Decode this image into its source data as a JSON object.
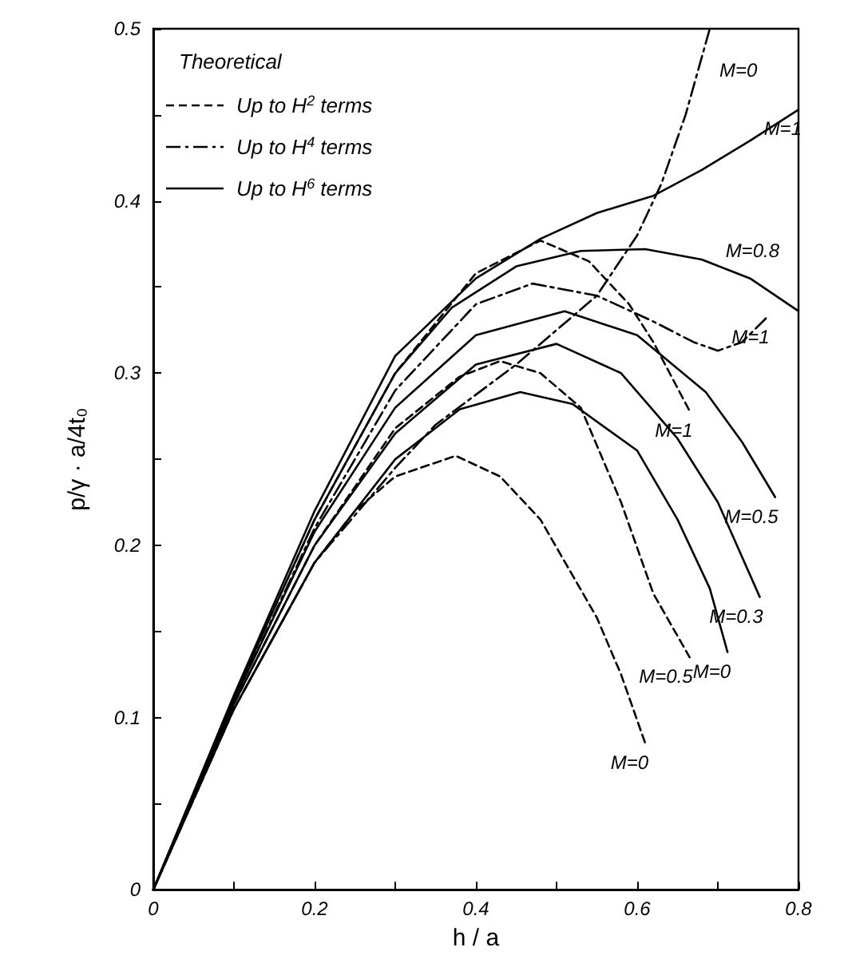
{
  "chart_data": {
    "type": "line",
    "xlabel": "h / a",
    "ylabel": "p/γ · a/4t₀",
    "legend_title": "Theoretical",
    "grid": false,
    "xlim": [
      0,
      0.8
    ],
    "xticks": [
      0,
      {
        "value": 0.1,
        "label": null
      },
      0.2,
      {
        "value": 0.3,
        "label": null
      },
      0.4,
      {
        "value": 0.5,
        "label": null
      },
      0.6,
      {
        "value": 0.7,
        "label": null
      },
      0.8
    ],
    "ylim": [
      0,
      0.5
    ],
    "yticks": [
      0,
      {
        "value": 0.05,
        "label": null
      },
      0.1,
      {
        "value": 0.15,
        "label": null
      },
      0.2,
      {
        "value": 0.25,
        "label": null
      },
      0.3,
      {
        "value": 0.35,
        "label": null
      },
      0.4,
      {
        "value": 0.45,
        "label": null
      },
      0.5
    ],
    "series": [
      {
        "name": "M=0",
        "color": "#000000",
        "line_style": "dashed",
        "x": [
          0,
          0.1,
          0.2,
          0.25,
          0.3,
          0.375,
          0.43,
          0.48,
          0.55,
          0.58,
          0.61
        ],
        "values": [
          0,
          0.105,
          0.19,
          0.22,
          0.24,
          0.252,
          0.24,
          0.215,
          0.158,
          0.125,
          0.085
        ]
      },
      {
        "name": "M=0.5",
        "color": "#000000",
        "line_style": "dashed",
        "x": [
          0,
          0.1,
          0.2,
          0.3,
          0.38,
          0.43,
          0.48,
          0.53,
          0.58,
          0.62,
          0.665
        ],
        "values": [
          0,
          0.108,
          0.2,
          0.268,
          0.298,
          0.307,
          0.3,
          0.28,
          0.225,
          0.172,
          0.135
        ]
      },
      {
        "name": "M=1",
        "color": "#000000",
        "line_style": "dashed",
        "x": [
          0,
          0.1,
          0.2,
          0.3,
          0.4,
          0.48,
          0.54,
          0.59,
          0.62,
          0.665
        ],
        "values": [
          0,
          0.112,
          0.215,
          0.3,
          0.358,
          0.377,
          0.365,
          0.34,
          0.318,
          0.278
        ]
      },
      {
        "name": "M=0",
        "color": "#000000",
        "line_style": "dashdot",
        "x": [
          0,
          0.1,
          0.2,
          0.3,
          0.35,
          0.45,
          0.55,
          0.6,
          0.63,
          0.66,
          0.69
        ],
        "values": [
          0,
          0.105,
          0.19,
          0.245,
          0.27,
          0.305,
          0.345,
          0.38,
          0.41,
          0.45,
          0.5
        ]
      },
      {
        "name": "M=1",
        "color": "#000000",
        "line_style": "dashdot",
        "x": [
          0,
          0.1,
          0.2,
          0.3,
          0.4,
          0.47,
          0.55,
          0.62,
          0.67,
          0.7,
          0.73,
          0.76
        ],
        "values": [
          0,
          0.11,
          0.21,
          0.29,
          0.34,
          0.352,
          0.345,
          0.33,
          0.318,
          0.313,
          0.318,
          0.332
        ]
      },
      {
        "name": "M=0",
        "color": "#000000",
        "line_style": "solid",
        "x": [
          0,
          0.1,
          0.2,
          0.3,
          0.38,
          0.455,
          0.52,
          0.6,
          0.65,
          0.69,
          0.712
        ],
        "values": [
          0,
          0.105,
          0.19,
          0.25,
          0.279,
          0.289,
          0.282,
          0.255,
          0.215,
          0.175,
          0.138
        ]
      },
      {
        "name": "M=0.3",
        "color": "#000000",
        "line_style": "solid",
        "x": [
          0,
          0.1,
          0.2,
          0.3,
          0.4,
          0.5,
          0.58,
          0.65,
          0.7,
          0.752
        ],
        "values": [
          0,
          0.108,
          0.2,
          0.265,
          0.305,
          0.317,
          0.3,
          0.262,
          0.225,
          0.17
        ]
      },
      {
        "name": "M=0.5",
        "color": "#000000",
        "line_style": "solid",
        "x": [
          0,
          0.1,
          0.2,
          0.3,
          0.4,
          0.51,
          0.6,
          0.685,
          0.73,
          0.771
        ],
        "values": [
          0,
          0.11,
          0.208,
          0.28,
          0.322,
          0.336,
          0.322,
          0.289,
          0.26,
          0.228
        ]
      },
      {
        "name": "M=0.8",
        "color": "#000000",
        "line_style": "solid",
        "x": [
          0,
          0.1,
          0.2,
          0.3,
          0.37,
          0.45,
          0.53,
          0.61,
          0.68,
          0.74,
          0.8
        ],
        "values": [
          0,
          0.112,
          0.215,
          0.3,
          0.338,
          0.362,
          0.371,
          0.372,
          0.366,
          0.355,
          0.336
        ]
      },
      {
        "name": "M=1",
        "color": "#000000",
        "line_style": "solid",
        "x": [
          0,
          0.1,
          0.2,
          0.3,
          0.4,
          0.48,
          0.55,
          0.62,
          0.68,
          0.74,
          0.8
        ],
        "values": [
          0,
          0.113,
          0.22,
          0.31,
          0.355,
          0.378,
          0.393,
          0.403,
          0.418,
          0.435,
          0.453
        ]
      }
    ],
    "annotations": [
      "Up to H$^{2}$ terms",
      "Up to H$^{4}$ terms",
      "Up to H$^{6}$ terms"
    ]
  }
}
